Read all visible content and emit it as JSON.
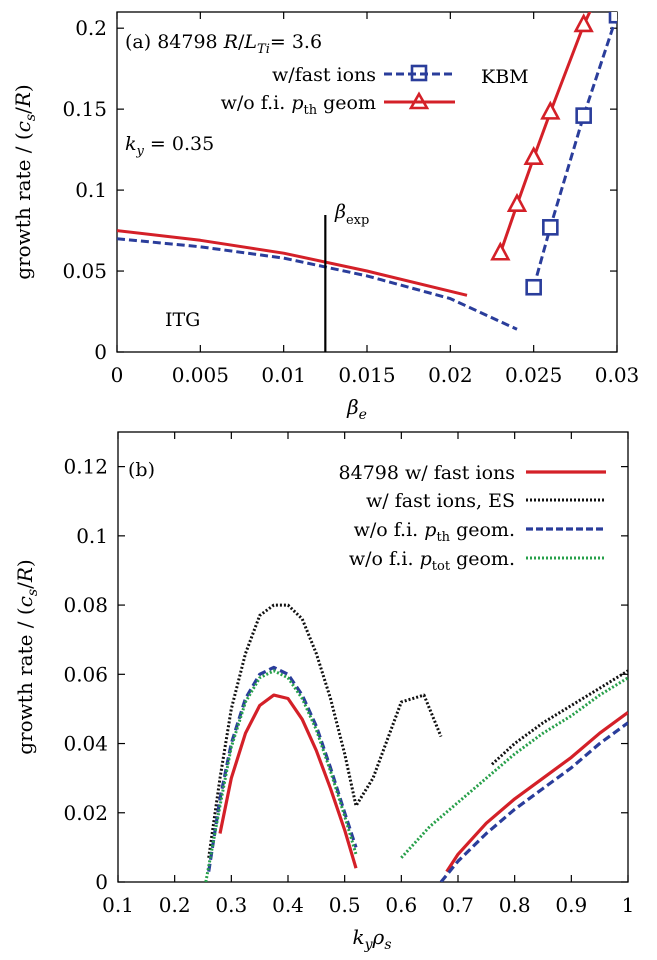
{
  "chart_data": [
    {
      "panel": "(a)",
      "type": "line",
      "annotation_title": "84798 R/L_Ti = 3.6",
      "annotation_ky": "k_y = 0.35",
      "annotation_beta_exp": "β_exp",
      "label_itg": "ITG",
      "label_kbm": "KBM",
      "xlabel": "β_e",
      "ylabel": "growth rate / (c_s/R)",
      "xlim": [
        0,
        0.03
      ],
      "ylim": [
        0,
        0.21
      ],
      "xticks": [
        "0",
        "0.005",
        "0.01",
        "0.015",
        "0.02",
        "0.025",
        "0.03"
      ],
      "yticks": [
        "0",
        "0.05",
        "0.1",
        "0.15",
        "0.2"
      ],
      "legend_position": "top-left",
      "beta_exp": 0.0125,
      "series": [
        {
          "name": "w/fast ions",
          "color": "#2a3d9b",
          "style": "dashed",
          "marker": "square",
          "branches": [
            {
              "x": [
                0,
                0.005,
                0.01,
                0.015,
                0.02,
                0.024
              ],
              "y": [
                0.07,
                0.065,
                0.058,
                0.047,
                0.033,
                0.014
              ]
            },
            {
              "x": [
                0.025,
                0.026,
                0.028,
                0.03
              ],
              "y": [
                0.04,
                0.077,
                0.146,
                0.208
              ],
              "markers": true
            }
          ]
        },
        {
          "name": "w/o f.i. p_th geom",
          "color": "#d42028",
          "style": "solid",
          "marker": "triangle",
          "branches": [
            {
              "x": [
                0,
                0.005,
                0.01,
                0.015,
                0.021
              ],
              "y": [
                0.075,
                0.069,
                0.061,
                0.05,
                0.035
              ]
            },
            {
              "x": [
                0.023,
                0.024,
                0.025,
                0.026,
                0.028,
                0.0295
              ],
              "y": [
                0.061,
                0.091,
                0.12,
                0.148,
                0.202,
                0.235
              ],
              "markers": true
            }
          ]
        }
      ]
    },
    {
      "panel": "(b)",
      "type": "line",
      "xlabel": "k_y ρ_s",
      "ylabel": "growth rate / (c_s/R)",
      "xlim": [
        0.1,
        1.0
      ],
      "ylim": [
        0,
        0.13
      ],
      "xticks": [
        "0.1",
        "0.2",
        "0.3",
        "0.4",
        "0.5",
        "0.6",
        "0.7",
        "0.8",
        "0.9",
        "1"
      ],
      "yticks": [
        "0",
        "0.02",
        "0.04",
        "0.06",
        "0.08",
        "0.1",
        "0.12"
      ],
      "legend_position": "top-right",
      "series": [
        {
          "name": "84798 w/ fast ions",
          "color": "#d42028",
          "style": "solid",
          "width": 3.2,
          "branches": [
            {
              "x": [
                0.28,
                0.3,
                0.325,
                0.35,
                0.375,
                0.4,
                0.425,
                0.45,
                0.475,
                0.5,
                0.52
              ],
              "y": [
                0.014,
                0.03,
                0.043,
                0.051,
                0.054,
                0.053,
                0.047,
                0.038,
                0.027,
                0.015,
                0.004
              ]
            },
            {
              "x": [
                0.68,
                0.7,
                0.75,
                0.8,
                0.85,
                0.9,
                0.95,
                1.0
              ],
              "y": [
                0.003,
                0.008,
                0.017,
                0.024,
                0.03,
                0.036,
                0.043,
                0.049
              ]
            }
          ]
        },
        {
          "name": "w/ fast ions, ES",
          "color": "#111111",
          "style": "dotted",
          "width": 3,
          "branches": [
            {
              "x": [
                0.26,
                0.28,
                0.3,
                0.325,
                0.35,
                0.375,
                0.4,
                0.425,
                0.45,
                0.475,
                0.5,
                0.52,
                0.55,
                0.6,
                0.64,
                0.67
              ],
              "y": [
                0.007,
                0.03,
                0.05,
                0.066,
                0.077,
                0.08,
                0.08,
                0.076,
                0.066,
                0.053,
                0.037,
                0.022,
                0.03,
                0.052,
                0.054,
                0.042
              ]
            },
            {
              "x": [
                0.76,
                0.8,
                0.85,
                0.9,
                0.95,
                1.0
              ],
              "y": [
                0.034,
                0.04,
                0.046,
                0.051,
                0.056,
                0.061
              ]
            }
          ]
        },
        {
          "name": "w/o f.i. p_th geom.",
          "color": "#2a3d9b",
          "style": "dashed",
          "width": 3.2,
          "branches": [
            {
              "x": [
                0.26,
                0.28,
                0.3,
                0.325,
                0.35,
                0.375,
                0.4,
                0.425,
                0.45,
                0.475,
                0.5,
                0.52
              ],
              "y": [
                0.003,
                0.024,
                0.04,
                0.053,
                0.06,
                0.062,
                0.06,
                0.054,
                0.045,
                0.033,
                0.02,
                0.01
              ]
            },
            {
              "x": [
                0.67,
                0.7,
                0.75,
                0.8,
                0.85,
                0.9,
                0.95,
                1.0
              ],
              "y": [
                0.0,
                0.006,
                0.014,
                0.021,
                0.027,
                0.033,
                0.04,
                0.046
              ]
            }
          ]
        },
        {
          "name": "w/o f.i. p_tot geom.",
          "color": "#27a04a",
          "style": "dotted",
          "width": 3,
          "branches": [
            {
              "x": [
                0.255,
                0.28,
                0.3,
                0.325,
                0.35,
                0.375,
                0.4,
                0.425,
                0.45,
                0.475,
                0.5,
                0.52
              ],
              "y": [
                0.0,
                0.022,
                0.039,
                0.052,
                0.059,
                0.061,
                0.059,
                0.053,
                0.044,
                0.032,
                0.019,
                0.008
              ]
            },
            {
              "x": [
                0.6,
                0.65,
                0.7,
                0.75,
                0.8,
                0.85,
                0.9,
                0.95,
                1.0
              ],
              "y": [
                0.007,
                0.016,
                0.023,
                0.03,
                0.037,
                0.043,
                0.048,
                0.054,
                0.059
              ]
            }
          ]
        }
      ]
    }
  ]
}
